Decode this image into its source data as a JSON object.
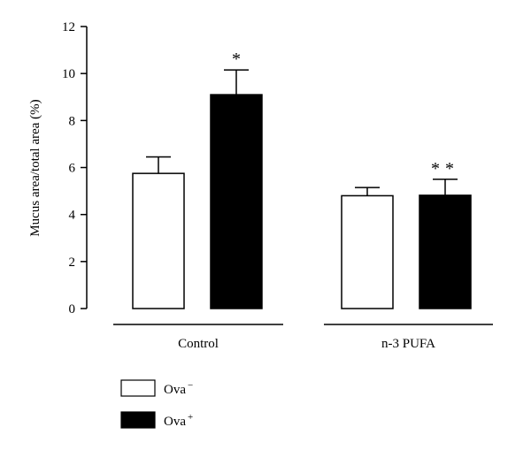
{
  "chart_data": {
    "type": "bar",
    "title": "",
    "ylabel": "Mucus area/total area (%)",
    "xlabel": "",
    "ylim": [
      0,
      12
    ],
    "yticks": [
      0,
      2,
      4,
      6,
      8,
      10,
      12
    ],
    "categories": [
      "Control",
      "n-3 PUFA"
    ],
    "series": [
      {
        "name": "Ova−",
        "color": "#ffffff",
        "values": [
          5.75,
          4.8
        ],
        "errors": [
          0.7,
          0.35
        ],
        "significance": [
          "",
          ""
        ]
      },
      {
        "name": "Ova+",
        "color": "#000000",
        "values": [
          9.1,
          4.82
        ],
        "errors": [
          1.05,
          0.68
        ],
        "significance": [
          "*",
          "**"
        ]
      }
    ],
    "grid": false,
    "legend_position": "bottom-left"
  }
}
